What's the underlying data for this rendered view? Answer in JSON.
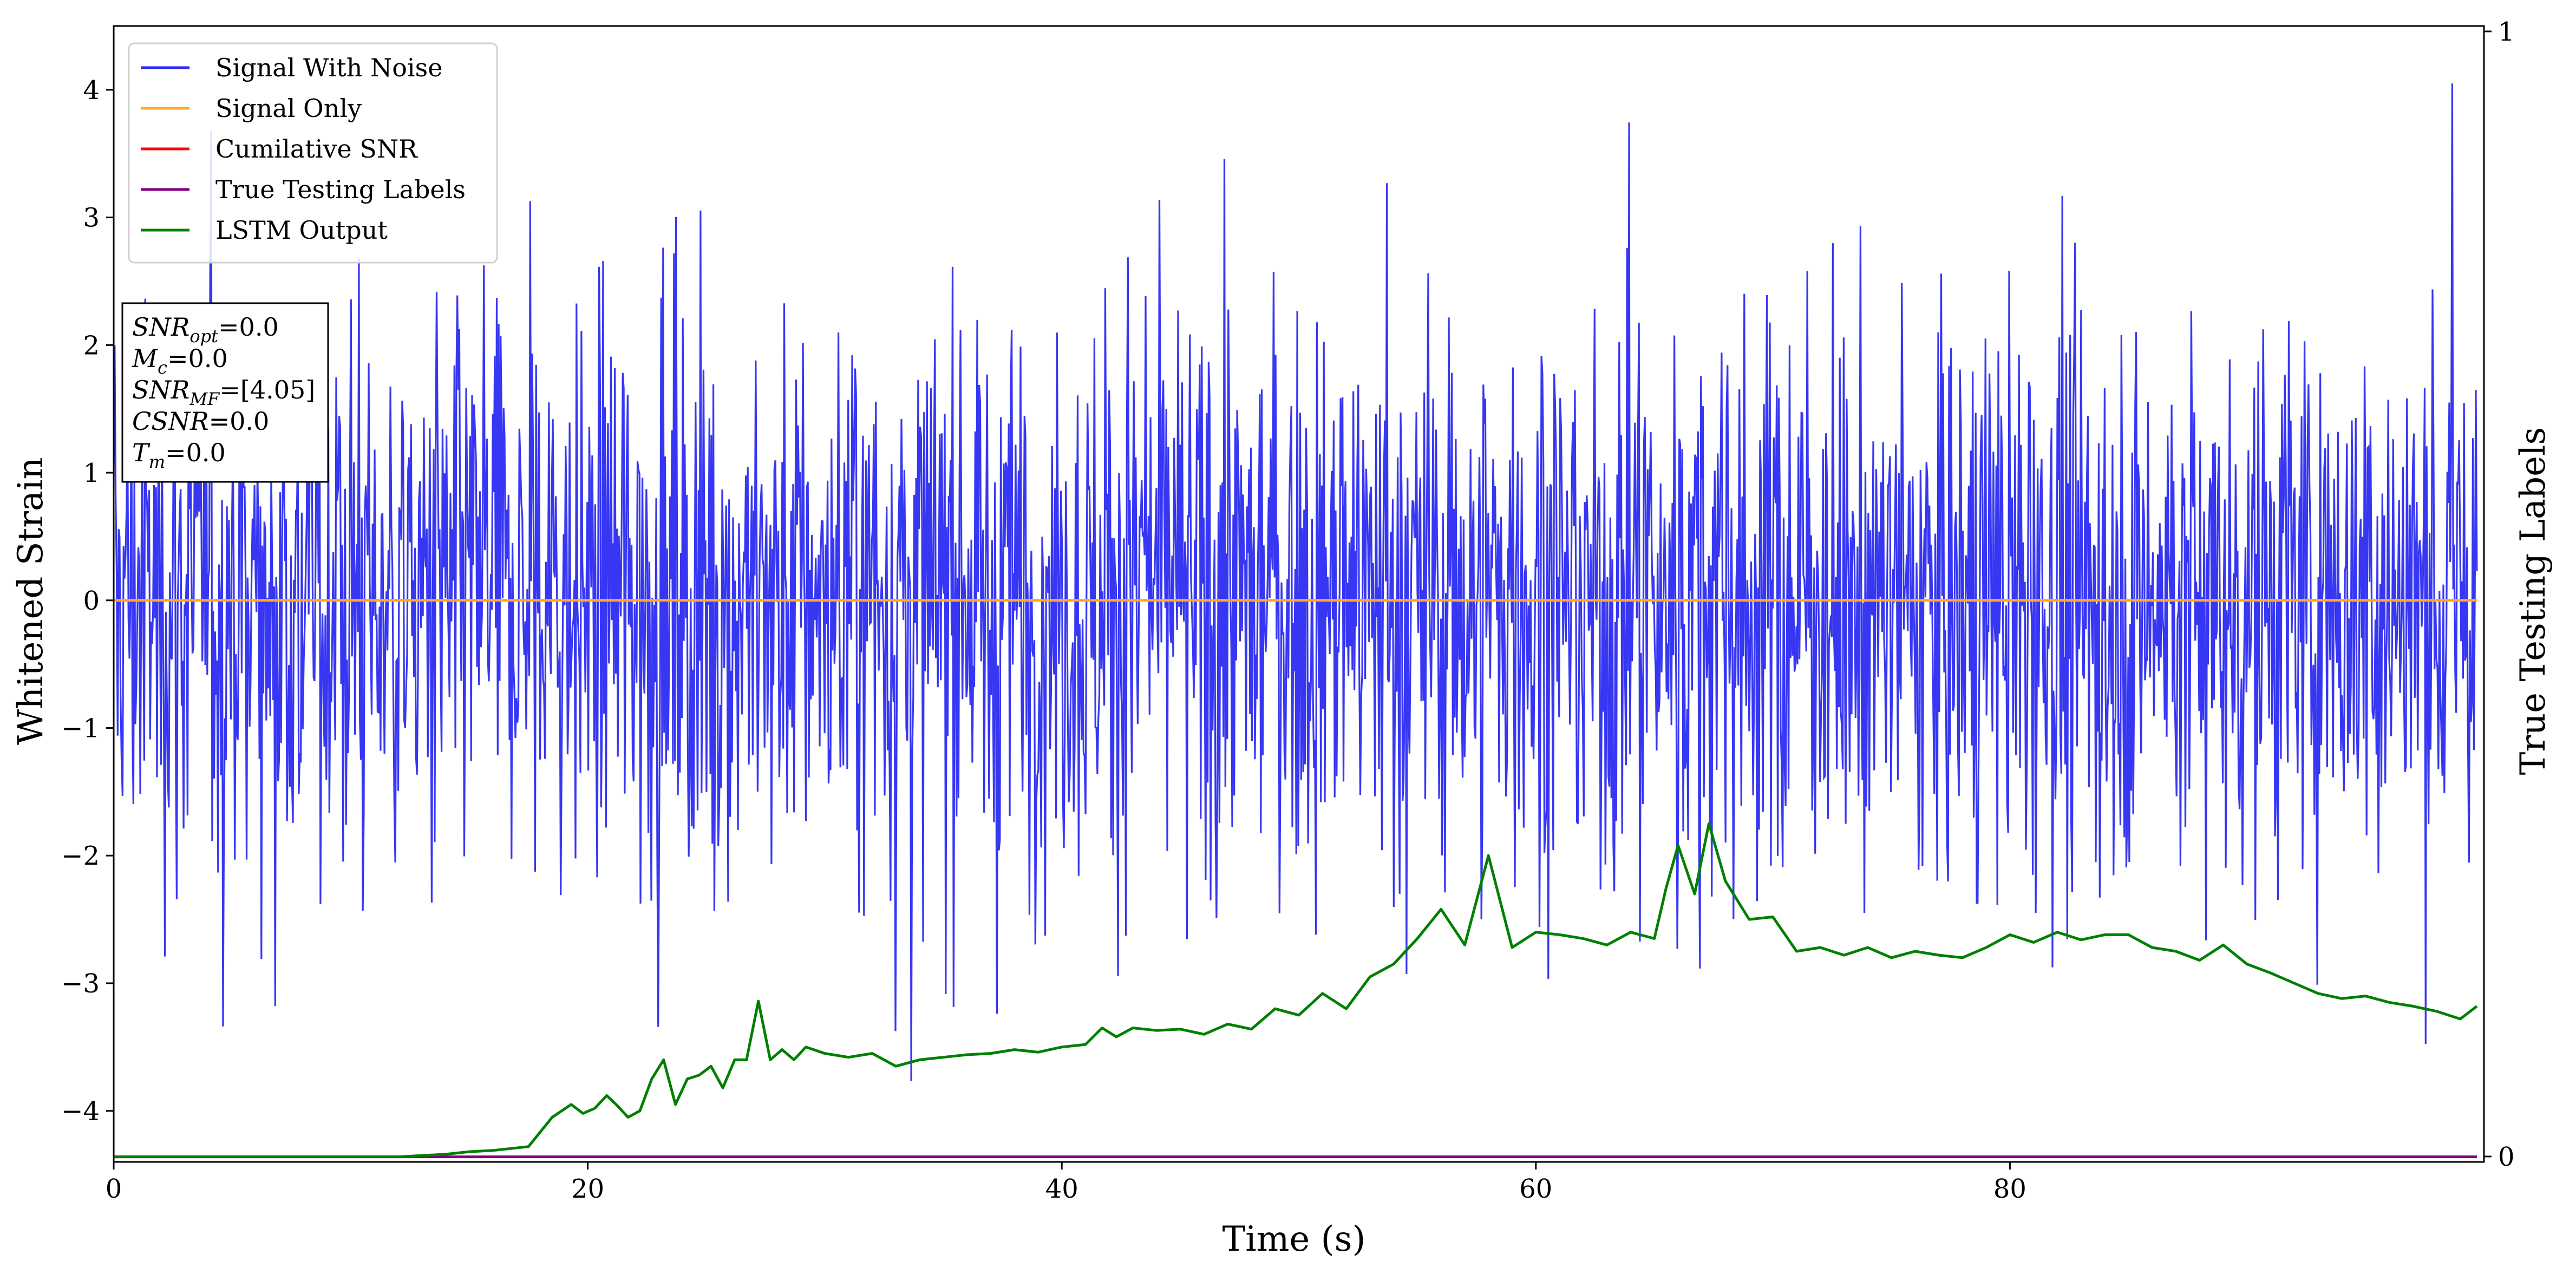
{
  "chart_data": {
    "type": "line",
    "title": "",
    "xlabel": "Time (s)",
    "ylabel": "Whitened Strain",
    "y2label": "True Testing Labels",
    "xlim": [
      0,
      100
    ],
    "ylim": [
      -4.4,
      4.5
    ],
    "y2lim": [
      0,
      1
    ],
    "x_ticks": [
      0,
      20,
      40,
      60,
      80
    ],
    "y_ticks": [
      -4,
      -3,
      -2,
      -1,
      0,
      1,
      2,
      3,
      4
    ],
    "y2_ticks": [
      0,
      1
    ],
    "grid": false,
    "legend_position": "top-left",
    "legend": [
      "Signal With Noise",
      "Signal Only",
      "Cumilative SNR",
      "True Testing Labels",
      "LSTM Output"
    ],
    "annotation": [
      {
        "base": "SNR",
        "sub": "opt",
        "value": "=0.0"
      },
      {
        "base": "M",
        "sub": "c",
        "value": "=0.0"
      },
      {
        "base": "SNR",
        "sub": "MF",
        "value": "=[4.05]"
      },
      {
        "base": "CSNR",
        "sub": "",
        "value": "=0.0"
      },
      {
        "base": "T",
        "sub": "m",
        "value": "=0.0"
      }
    ],
    "series": [
      {
        "name": "Signal With Noise",
        "color": "#2b2bf2",
        "description_values": "noise band",
        "band_min": -4.1,
        "band_max": 4.1,
        "typical_amplitude": 1.1
      },
      {
        "name": "Signal Only",
        "color": "#ffa726",
        "x": [
          0,
          99.7
        ],
        "y": [
          0,
          0
        ]
      },
      {
        "name": "Cumilative SNR",
        "color": "#ff0000",
        "x": [],
        "y": []
      },
      {
        "name": "True Testing Labels",
        "color": "#800080",
        "x": [
          0,
          99.7
        ],
        "y": [
          -4.36,
          -4.36
        ]
      },
      {
        "name": "LSTM Output",
        "color": "#008000",
        "x": [
          0,
          12,
          14,
          15,
          16,
          17.5,
          18.5,
          19.3,
          19.8,
          20.3,
          20.8,
          21.2,
          21.7,
          22.2,
          22.7,
          23.2,
          23.7,
          24.2,
          24.7,
          25.2,
          25.7,
          26.2,
          26.7,
          27.2,
          27.7,
          28.2,
          28.7,
          29.2,
          30,
          31,
          32,
          33,
          34,
          35,
          36,
          37,
          38,
          39,
          40,
          41,
          41.7,
          42.3,
          43,
          44,
          45,
          46,
          47,
          48,
          49,
          50,
          51,
          52,
          53,
          54,
          55,
          56,
          57,
          58,
          59,
          60,
          61,
          62,
          63,
          64,
          65,
          65.5,
          66,
          66.7,
          67.3,
          68,
          69,
          70,
          71,
          72,
          73,
          74,
          75,
          76,
          77,
          78,
          79,
          80,
          81,
          82,
          83,
          84,
          85,
          86,
          87,
          88,
          89,
          90,
          91,
          92,
          93,
          94,
          95,
          96,
          97,
          98,
          99,
          99.7
        ],
        "y": [
          -4.36,
          -4.36,
          -4.34,
          -4.32,
          -4.31,
          -4.28,
          -4.05,
          -3.95,
          -4.02,
          -3.98,
          -3.88,
          -3.95,
          -4.05,
          -4.0,
          -3.75,
          -3.6,
          -3.95,
          -3.75,
          -3.72,
          -3.65,
          -3.82,
          -3.6,
          -3.6,
          -3.14,
          -3.6,
          -3.52,
          -3.6,
          -3.5,
          -3.55,
          -3.58,
          -3.55,
          -3.65,
          -3.6,
          -3.58,
          -3.56,
          -3.55,
          -3.52,
          -3.54,
          -3.5,
          -3.48,
          -3.35,
          -3.42,
          -3.35,
          -3.37,
          -3.36,
          -3.4,
          -3.32,
          -3.36,
          -3.2,
          -3.25,
          -3.08,
          -3.2,
          -2.95,
          -2.85,
          -2.65,
          -2.42,
          -2.7,
          -2.0,
          -2.72,
          -2.6,
          -2.62,
          -2.65,
          -2.7,
          -2.6,
          -2.65,
          -2.25,
          -1.92,
          -2.3,
          -1.75,
          -2.2,
          -2.5,
          -2.48,
          -2.75,
          -2.72,
          -2.78,
          -2.72,
          -2.8,
          -2.75,
          -2.78,
          -2.8,
          -2.72,
          -2.62,
          -2.68,
          -2.6,
          -2.66,
          -2.62,
          -2.62,
          -2.72,
          -2.75,
          -2.82,
          -2.7,
          -2.85,
          -2.92,
          -3.0,
          -3.08,
          -3.12,
          -3.1,
          -3.15,
          -3.18,
          -3.22,
          -3.28,
          -3.18
        ]
      }
    ]
  }
}
